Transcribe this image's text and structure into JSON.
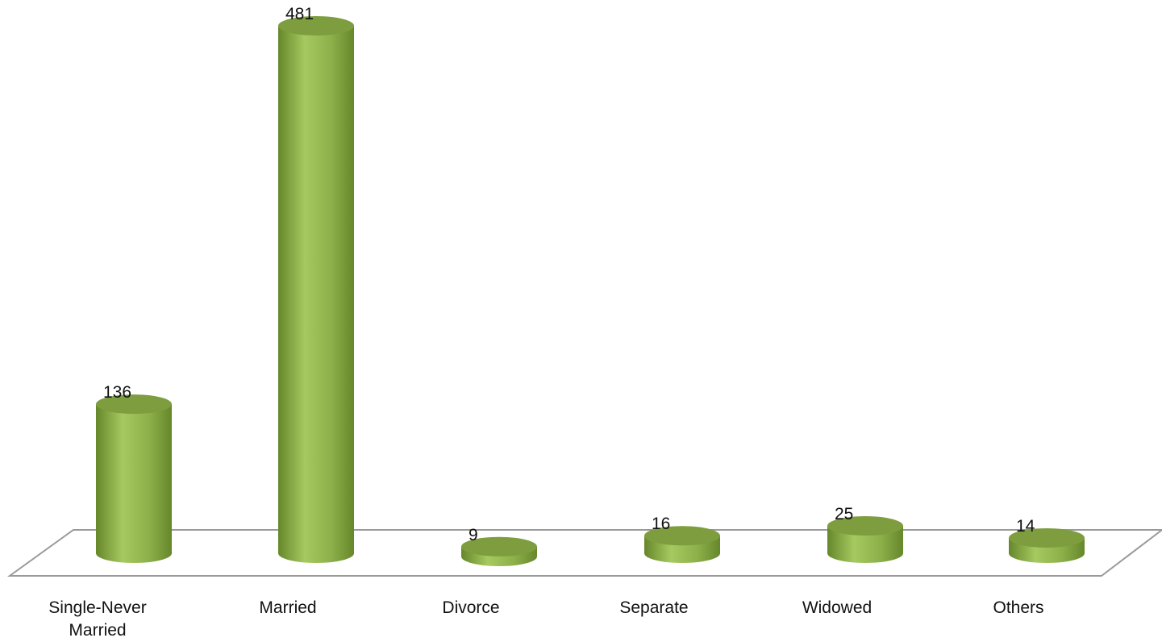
{
  "chart_data": {
    "type": "bar",
    "style": "3d-cylinder",
    "categories": [
      "Single-Never Married",
      "Married",
      "Divorce",
      "Separate",
      "Widowed",
      "Others"
    ],
    "category_lines": [
      [
        "Single-Never",
        "Married"
      ],
      [
        "Married"
      ],
      [
        "Divorce"
      ],
      [
        "Separate"
      ],
      [
        "Widowed"
      ],
      [
        "Others"
      ]
    ],
    "values": [
      136,
      481,
      9,
      16,
      25,
      14
    ],
    "title": "",
    "xlabel": "",
    "ylabel": "",
    "ylim": [
      0,
      481
    ],
    "grid": false,
    "legend": "none",
    "data_labels": true
  },
  "colors": {
    "bar_light": "#a6c960",
    "bar_mid": "#8db04a",
    "bar_dark": "#66872a",
    "bar_top": "#7d9d3e",
    "floor_line": "#9a9a9a",
    "text": "#111111"
  }
}
